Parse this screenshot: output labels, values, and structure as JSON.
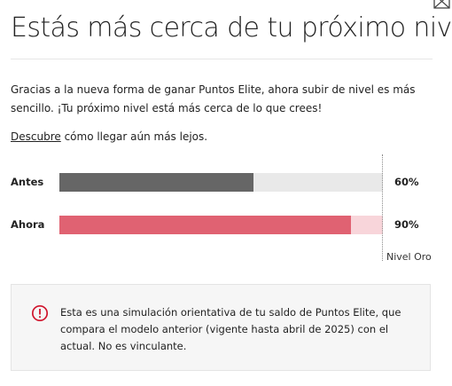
{
  "header": {
    "title": "Estás más cerca de tu próximo nivel",
    "close_icon": "close-icon"
  },
  "intro": {
    "text": "Gracias a la nueva forma de ganar Puntos Elite, ahora subir de nivel es más sencillo. ¡Tu próximo nivel está más cerca de lo que crees!"
  },
  "cta": {
    "link_text": "Descubre",
    "rest_text": " cómo llegar aún más lejos."
  },
  "comparison": {
    "rows": [
      {
        "label": "Antes",
        "percent_text": "60%",
        "fill_fraction": 0.6,
        "fill_color": "#666666",
        "track_color": "#e9e9e9"
      },
      {
        "label": "Ahora",
        "percent_text": "90%",
        "fill_fraction": 0.9,
        "fill_color": "#e06272",
        "track_color": "#f8d5da"
      }
    ],
    "target_label": "Nivel Oro"
  },
  "notice": {
    "icon": "info-circle-icon",
    "icon_color": "#d0142c",
    "text": "Esta es una simulación orientativa de tu saldo de Puntos Elite, que compara el modelo anterior (vigente hasta abril de 2025) con el actual. No es vinculante."
  }
}
